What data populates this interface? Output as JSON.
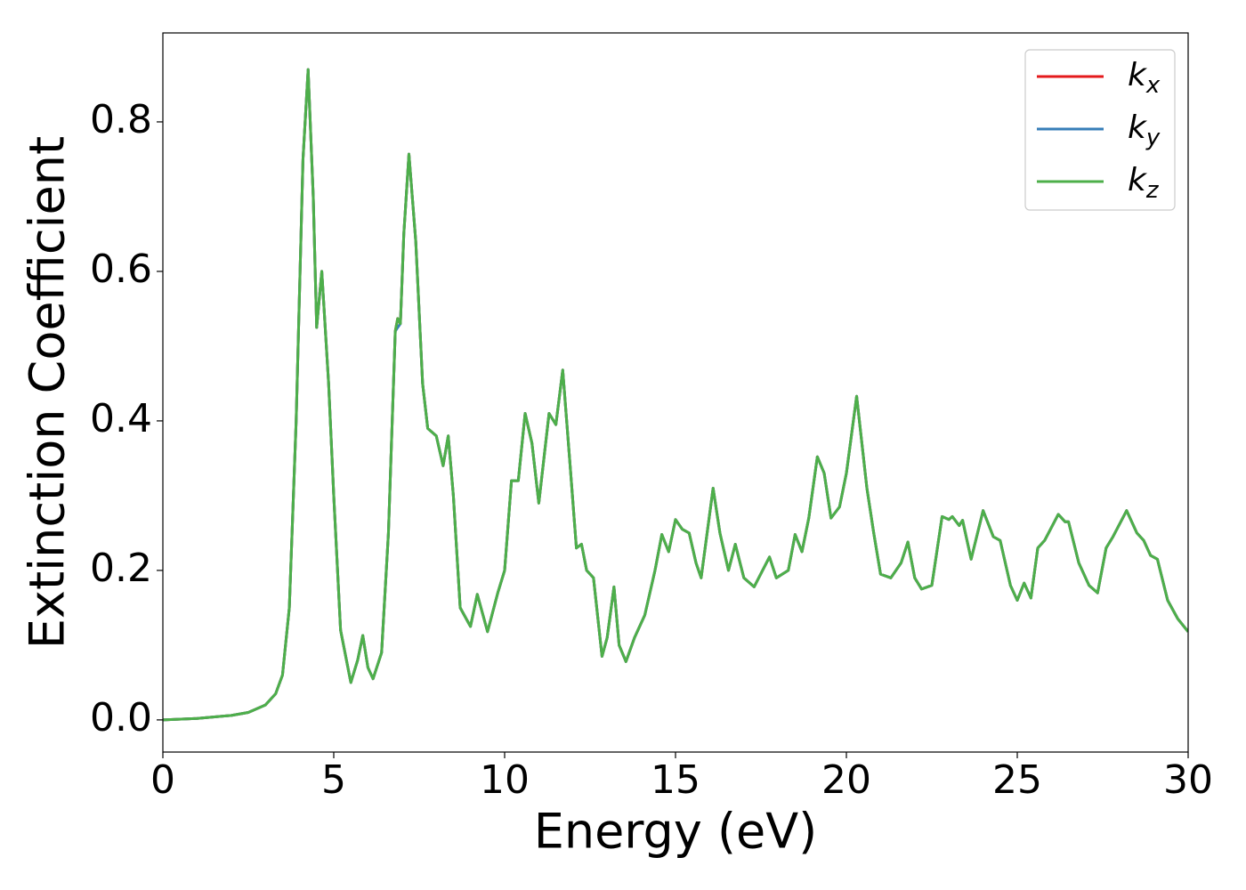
{
  "chart_data": {
    "type": "line",
    "xlabel": "Energy (eV)",
    "ylabel": "Extinction Coefficient",
    "x": [
      0,
      1,
      2,
      2.5,
      3,
      3.3,
      3.5,
      3.7,
      3.9,
      4.1,
      4.25,
      4.4,
      4.5,
      4.65,
      4.85,
      5.0,
      5.2,
      5.5,
      5.7,
      5.85,
      6.0,
      6.15,
      6.4,
      6.6,
      6.8,
      6.87,
      6.95,
      7.05,
      7.2,
      7.4,
      7.6,
      7.75,
      8.0,
      8.2,
      8.35,
      8.5,
      8.7,
      9.0,
      9.2,
      9.5,
      9.8,
      10.0,
      10.2,
      10.4,
      10.6,
      10.8,
      11.0,
      11.3,
      11.5,
      11.7,
      11.9,
      12.1,
      12.25,
      12.4,
      12.6,
      12.85,
      13.0,
      13.2,
      13.35,
      13.55,
      13.8,
      14.1,
      14.4,
      14.6,
      14.8,
      15.0,
      15.2,
      15.4,
      15.6,
      15.75,
      16.1,
      16.3,
      16.55,
      16.75,
      17.0,
      17.3,
      17.75,
      17.95,
      18.3,
      18.5,
      18.7,
      18.9,
      19.15,
      19.35,
      19.55,
      19.8,
      20.0,
      20.3,
      20.6,
      20.8,
      21.0,
      21.3,
      21.6,
      21.8,
      22.0,
      22.2,
      22.5,
      22.8,
      23.0,
      23.1,
      23.3,
      23.4,
      23.65,
      24.0,
      24.3,
      24.5,
      24.8,
      25.0,
      25.2,
      25.4,
      25.6,
      25.8,
      26.2,
      26.4,
      26.5,
      26.8,
      27.1,
      27.35,
      27.6,
      27.8,
      28.2,
      28.5,
      28.7,
      28.9,
      29.1,
      29.4,
      29.7,
      30.0
    ],
    "series": [
      {
        "name": "kx",
        "color": "#e41a1c",
        "values": [
          0,
          0.002,
          0.006,
          0.01,
          0.02,
          0.035,
          0.06,
          0.15,
          0.4,
          0.75,
          0.87,
          0.7,
          0.525,
          0.6,
          0.45,
          0.3,
          0.12,
          0.05,
          0.08,
          0.113,
          0.07,
          0.055,
          0.09,
          0.25,
          0.52,
          0.537,
          0.53,
          0.65,
          0.757,
          0.64,
          0.45,
          0.39,
          0.38,
          0.34,
          0.38,
          0.3,
          0.15,
          0.125,
          0.168,
          0.118,
          0.17,
          0.2,
          0.32,
          0.32,
          0.41,
          0.37,
          0.29,
          0.41,
          0.395,
          0.468,
          0.35,
          0.23,
          0.235,
          0.2,
          0.19,
          0.085,
          0.11,
          0.178,
          0.1,
          0.078,
          0.11,
          0.14,
          0.2,
          0.248,
          0.225,
          0.268,
          0.255,
          0.25,
          0.21,
          0.19,
          0.31,
          0.25,
          0.2,
          0.235,
          0.19,
          0.178,
          0.218,
          0.19,
          0.2,
          0.248,
          0.225,
          0.27,
          0.352,
          0.33,
          0.27,
          0.285,
          0.33,
          0.433,
          0.31,
          0.25,
          0.195,
          0.19,
          0.21,
          0.238,
          0.19,
          0.175,
          0.18,
          0.272,
          0.268,
          0.272,
          0.26,
          0.267,
          0.215,
          0.28,
          0.245,
          0.24,
          0.18,
          0.16,
          0.183,
          0.163,
          0.23,
          0.24,
          0.275,
          0.265,
          0.265,
          0.21,
          0.18,
          0.17,
          0.23,
          0.245,
          0.28,
          0.25,
          0.24,
          0.22,
          0.215,
          0.16,
          0.135,
          0.118
        ]
      },
      {
        "name": "ky",
        "color": "#377eb8",
        "values": [
          0,
          0.002,
          0.006,
          0.01,
          0.02,
          0.035,
          0.06,
          0.15,
          0.4,
          0.75,
          0.87,
          0.7,
          0.525,
          0.6,
          0.45,
          0.3,
          0.12,
          0.05,
          0.08,
          0.113,
          0.07,
          0.055,
          0.09,
          0.25,
          0.52,
          0.525,
          0.53,
          0.65,
          0.757,
          0.64,
          0.45,
          0.39,
          0.38,
          0.34,
          0.38,
          0.3,
          0.15,
          0.125,
          0.168,
          0.118,
          0.17,
          0.2,
          0.32,
          0.32,
          0.41,
          0.37,
          0.29,
          0.41,
          0.395,
          0.468,
          0.35,
          0.23,
          0.235,
          0.2,
          0.19,
          0.085,
          0.11,
          0.178,
          0.1,
          0.078,
          0.11,
          0.14,
          0.2,
          0.248,
          0.225,
          0.268,
          0.255,
          0.25,
          0.21,
          0.19,
          0.31,
          0.25,
          0.2,
          0.235,
          0.19,
          0.178,
          0.218,
          0.19,
          0.2,
          0.248,
          0.225,
          0.27,
          0.352,
          0.33,
          0.27,
          0.285,
          0.33,
          0.433,
          0.31,
          0.25,
          0.195,
          0.19,
          0.21,
          0.238,
          0.19,
          0.175,
          0.18,
          0.272,
          0.268,
          0.272,
          0.26,
          0.267,
          0.215,
          0.28,
          0.245,
          0.24,
          0.18,
          0.16,
          0.183,
          0.163,
          0.23,
          0.24,
          0.275,
          0.265,
          0.265,
          0.21,
          0.18,
          0.17,
          0.23,
          0.245,
          0.28,
          0.25,
          0.24,
          0.22,
          0.215,
          0.16,
          0.135,
          0.118
        ]
      },
      {
        "name": "kz",
        "color": "#4daf4a",
        "values": [
          0,
          0.002,
          0.006,
          0.01,
          0.02,
          0.035,
          0.06,
          0.15,
          0.4,
          0.75,
          0.87,
          0.7,
          0.525,
          0.6,
          0.45,
          0.3,
          0.12,
          0.05,
          0.08,
          0.113,
          0.07,
          0.055,
          0.09,
          0.25,
          0.52,
          0.537,
          0.53,
          0.65,
          0.757,
          0.64,
          0.45,
          0.39,
          0.38,
          0.34,
          0.38,
          0.3,
          0.15,
          0.125,
          0.168,
          0.118,
          0.17,
          0.2,
          0.32,
          0.32,
          0.41,
          0.37,
          0.29,
          0.41,
          0.395,
          0.468,
          0.35,
          0.23,
          0.235,
          0.2,
          0.19,
          0.085,
          0.11,
          0.178,
          0.1,
          0.078,
          0.11,
          0.14,
          0.2,
          0.248,
          0.225,
          0.268,
          0.255,
          0.25,
          0.21,
          0.19,
          0.31,
          0.25,
          0.2,
          0.235,
          0.19,
          0.178,
          0.218,
          0.19,
          0.2,
          0.248,
          0.225,
          0.27,
          0.352,
          0.33,
          0.27,
          0.285,
          0.33,
          0.433,
          0.31,
          0.25,
          0.195,
          0.19,
          0.21,
          0.238,
          0.19,
          0.175,
          0.18,
          0.272,
          0.268,
          0.272,
          0.26,
          0.267,
          0.215,
          0.28,
          0.245,
          0.24,
          0.18,
          0.16,
          0.183,
          0.163,
          0.23,
          0.24,
          0.275,
          0.265,
          0.265,
          0.21,
          0.18,
          0.17,
          0.23,
          0.245,
          0.28,
          0.25,
          0.24,
          0.22,
          0.215,
          0.16,
          0.135,
          0.118
        ]
      }
    ],
    "xlim": [
      0,
      30
    ],
    "xticks": [
      0,
      5,
      10,
      15,
      20,
      25,
      30
    ],
    "ylim": [
      -0.043,
      0.919
    ],
    "yticks": [
      {
        "value": 0,
        "label": "0.0"
      },
      {
        "value": 0.2,
        "label": "0.2"
      },
      {
        "value": 0.4,
        "label": "0.4"
      },
      {
        "value": 0.6,
        "label": "0.6"
      },
      {
        "value": 0.8,
        "label": "0.8"
      }
    ],
    "grid": false,
    "legend": "upper right"
  }
}
